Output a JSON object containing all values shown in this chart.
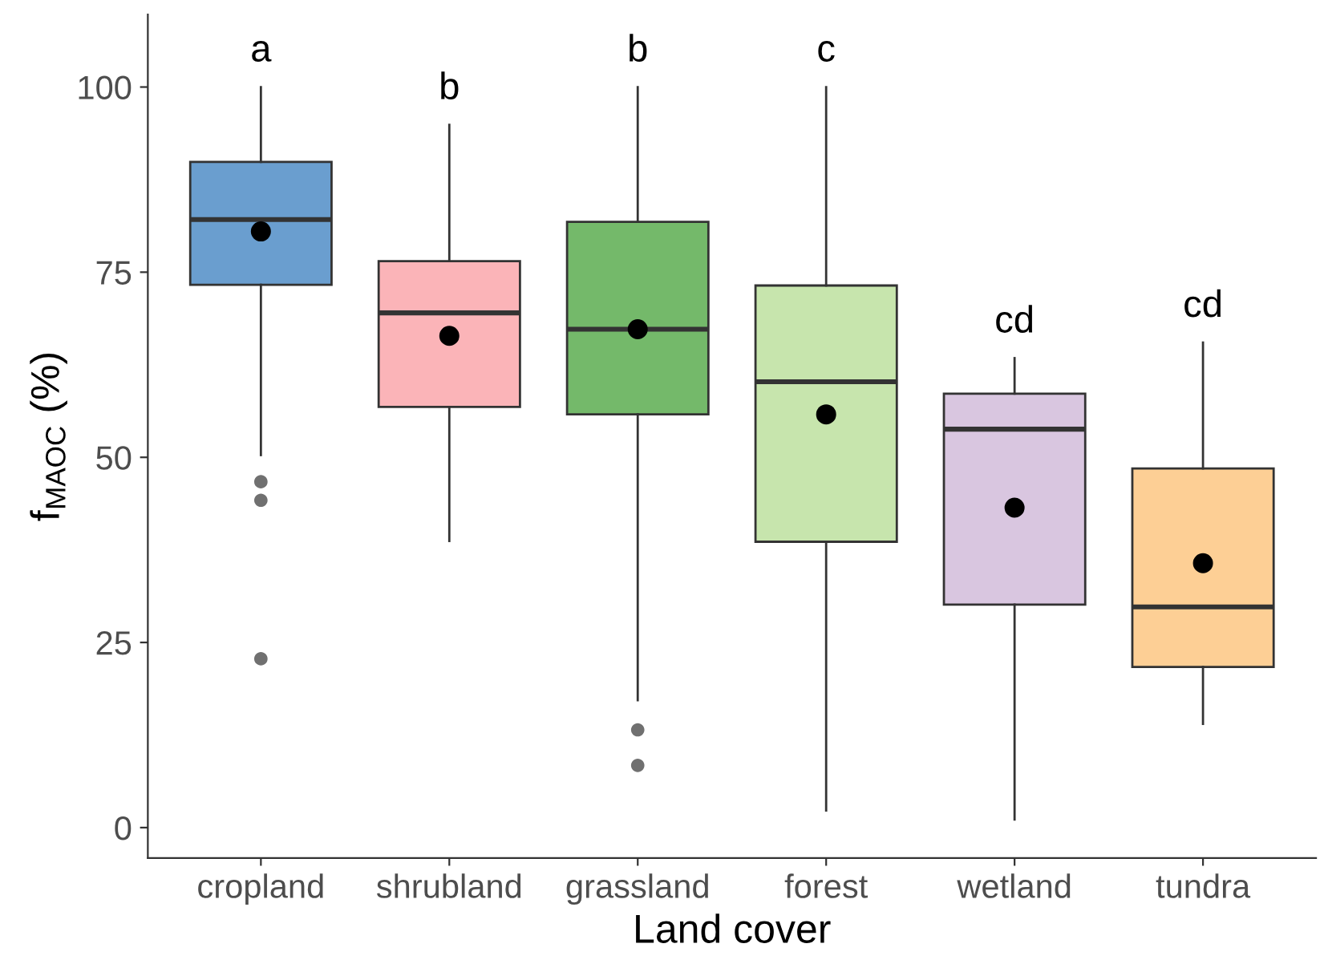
{
  "chart_data": {
    "type": "box",
    "xlabel": "Land cover",
    "ylabel": "f$_{MAOC}$ (%)",
    "categories": [
      "cropland",
      "shrubland",
      "grassland",
      "forest",
      "wetland",
      "tundra"
    ],
    "colors": [
      "#6a9ecf",
      "#fbb4b8",
      "#74b96a",
      "#c7e5ad",
      "#d9c6e0",
      "#fdcf95"
    ],
    "boxes": [
      {
        "low": 50.3,
        "q1": 73.3,
        "median": 82.1,
        "q3": 89.9,
        "high": 100,
        "mean": 80.5,
        "outliers": [
          46.7,
          44.2,
          22.8
        ]
      },
      {
        "low": 38.7,
        "q1": 56.8,
        "median": 69.5,
        "q3": 76.5,
        "high": 94.9,
        "mean": 66.4
      },
      {
        "low": 17.2,
        "q1": 55.8,
        "median": 67.3,
        "q3": 81.8,
        "high": 100,
        "mean": 67.3,
        "outliers": [
          13.2,
          8.4
        ]
      },
      {
        "low": 2.3,
        "q1": 38.6,
        "median": 60.2,
        "q3": 73.2,
        "high": 100,
        "mean": 55.8
      },
      {
        "low": 1.1,
        "q1": 30.1,
        "median": 53.8,
        "q3": 58.6,
        "high": 63.4,
        "mean": 43.2
      },
      {
        "low": 14.0,
        "q1": 21.7,
        "median": 29.8,
        "q3": 48.5,
        "high": 65.5,
        "mean": 35.7
      }
    ],
    "ylim": [
      -4.1,
      109.8
    ],
    "yticks": [
      0,
      25,
      50,
      75,
      100
    ],
    "grid": false,
    "annotations": [
      "a",
      "b",
      "b",
      "c",
      "cd",
      "cd"
    ]
  }
}
